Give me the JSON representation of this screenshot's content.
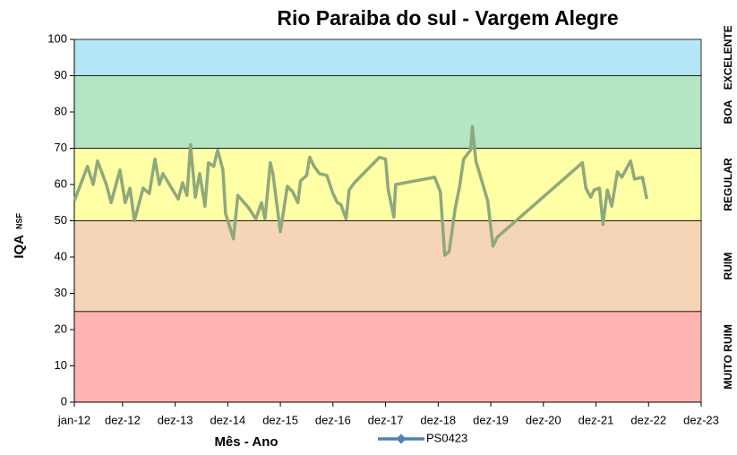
{
  "chart_data": {
    "type": "line",
    "title": "Rio Paraiba do sul - Vargem Alegre",
    "y_label": "IQA",
    "y_label_sub": "NSF",
    "x_label": "Mês - Ano",
    "xlim": [
      0,
      143
    ],
    "xticks": [
      {
        "value": 0,
        "label": "jan-12"
      },
      {
        "value": 11,
        "label": "dez-12"
      },
      {
        "value": 23,
        "label": "dez-13"
      },
      {
        "value": 35,
        "label": "dez-14"
      },
      {
        "value": 47,
        "label": "dez-15"
      },
      {
        "value": 59,
        "label": "dez-16"
      },
      {
        "value": 71,
        "label": "dez-17"
      },
      {
        "value": 83,
        "label": "dez-18"
      },
      {
        "value": 95,
        "label": "dez-19"
      },
      {
        "value": 107,
        "label": "dez-20"
      },
      {
        "value": 119,
        "label": "dez-21"
      },
      {
        "value": 131,
        "label": "dez-22"
      },
      {
        "value": 143,
        "label": "dez-23"
      }
    ],
    "ylim": [
      0,
      100
    ],
    "yticks": [
      0,
      10,
      20,
      30,
      40,
      50,
      60,
      70,
      80,
      90,
      100
    ],
    "bands": [
      {
        "label": "MUITO RUIM",
        "from": 0,
        "to": 25,
        "color": "#ffb3b3"
      },
      {
        "label": "RUIM",
        "from": 25,
        "to": 50,
        "color": "#f6d5b6"
      },
      {
        "label": "REGULAR",
        "from": 50,
        "to": 70,
        "color": "#ffffa6"
      },
      {
        "label": "BOA",
        "from": 70,
        "to": 90,
        "color": "#b4e6c6"
      },
      {
        "label": "EXCELENTE",
        "from": 90,
        "to": 100,
        "color": "#b4e6f6"
      }
    ],
    "series": [
      {
        "name": "PS0423",
        "color": "#4f81bd",
        "line_color": "#8ea97c",
        "x": [
          0,
          3,
          4.3,
          5.3,
          7.3,
          8.4,
          10.4,
          11.6,
          12.7,
          13.7,
          14.7,
          15.7,
          17.1,
          18.4,
          19.4,
          20.2,
          23.7,
          24.7,
          25.7,
          26.5,
          27.6,
          28.6,
          29.8,
          30.6,
          31.8,
          32.7,
          33.9,
          34.5,
          36.3,
          37.3,
          39.8,
          41.4,
          42.7,
          43.5,
          44.7,
          45.3,
          47,
          48.6,
          49.8,
          51,
          51.6,
          53,
          53.7,
          54.7,
          55.9,
          57.6,
          59,
          60,
          60.8,
          62,
          62.7,
          63.9,
          69.6,
          71,
          71.6,
          72.9,
          73.3,
          82.2,
          83.5,
          84.5,
          85.5,
          86.9,
          87.9,
          88.8,
          90.4,
          90.8,
          91.6,
          94.3,
          95.5,
          96.5,
          115.9,
          116.7,
          117.8,
          118.6,
          119.8,
          120.6,
          121.6,
          122.6,
          123.9,
          124.9,
          126.9,
          127.8,
          129.6,
          130.6
        ],
        "values": [
          55.5,
          65,
          60,
          66.5,
          60,
          55,
          64,
          55,
          59,
          50,
          54.5,
          59,
          57.5,
          67,
          60,
          63,
          56,
          60.5,
          57,
          71,
          56.5,
          63,
          54,
          66,
          65,
          69.5,
          64,
          52,
          45,
          57,
          53.5,
          50.5,
          55,
          50.5,
          66,
          63,
          47,
          59.5,
          58,
          55,
          61,
          62.5,
          67.5,
          65,
          63,
          62.5,
          57.5,
          55,
          54.5,
          50.5,
          58.5,
          60.5,
          67.5,
          67,
          58.5,
          51,
          60,
          62,
          58,
          40.5,
          41.5,
          53.5,
          59.5,
          67,
          69.5,
          76,
          66.5,
          55.5,
          43,
          45.5,
          66,
          59,
          56.5,
          58.5,
          59,
          49,
          58.5,
          54,
          63.5,
          62,
          66.5,
          61.5,
          62,
          56
        ]
      }
    ]
  }
}
